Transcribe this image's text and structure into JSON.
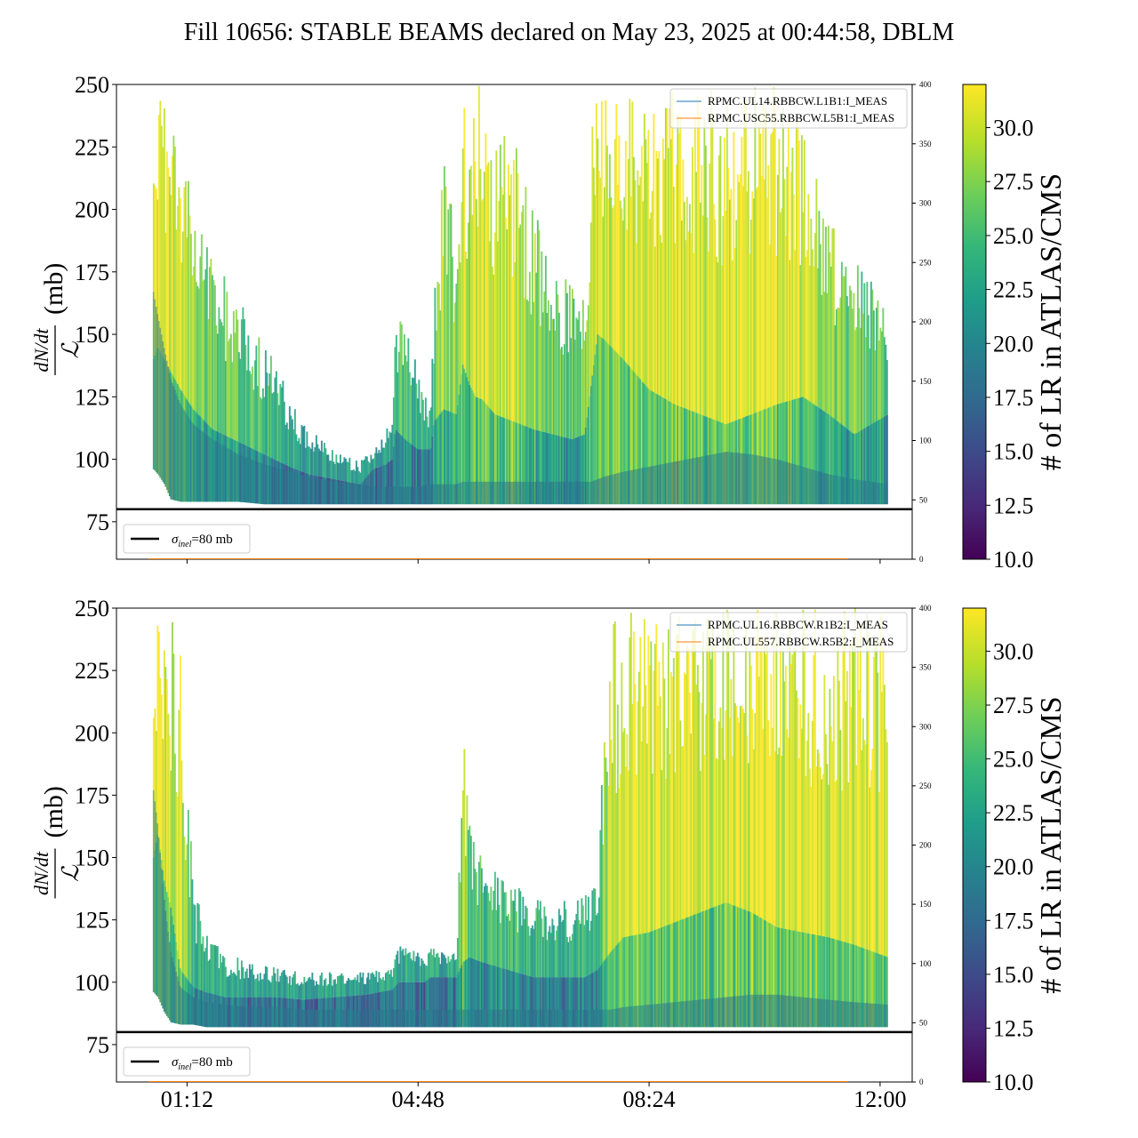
{
  "title": "Fill 10656: STABLE BEAMS declared on May 23, 2025 at 00:44:58, DBLM",
  "colors": {
    "viridis": [
      "#440154",
      "#482878",
      "#3e4989",
      "#31688e",
      "#26828e",
      "#1f9e89",
      "#35b779",
      "#6ece58",
      "#b5de2b",
      "#fde725"
    ],
    "sigma_line": "#000000",
    "rpmc_b1": "#1f77b4",
    "rpmc_b2": "#ff7f0e"
  },
  "chart_data": [
    {
      "type": "area",
      "panel": "top",
      "ylabel_num": "dN/dt",
      "ylabel_den": "ℒ",
      "ylabel_unit": "(mb)",
      "ylim": [
        60,
        250
      ],
      "yticks": [
        75,
        100,
        125,
        150,
        175,
        200,
        225,
        250
      ],
      "y2lim": [
        0,
        400
      ],
      "y2ticks": [
        0,
        50,
        100,
        150,
        200,
        250,
        300,
        350,
        400
      ],
      "xlim_hours": [
        0.1,
        12.5
      ],
      "xticks_hours": [
        1.2,
        4.8,
        8.4,
        12.0
      ],
      "xtick_labels": [
        "01:12",
        "04:48",
        "08:24",
        "12:00"
      ],
      "show_xtick_labels": false,
      "sigma_inel_mb": 80,
      "sigma_legend_sym": "σ",
      "sigma_legend_sub": "inel",
      "sigma_legend_val": "=80 mb",
      "right_legend": [
        "RPMC.UL14.RBBCW.L1B1:I_MEAS",
        "RPMC.USC55.RBBCW.L5B1:I_MEAS"
      ],
      "data_start_hours": 0.68,
      "data_end_hours": 12.13,
      "envelope": {
        "x_hours": [
          0.68,
          0.75,
          0.85,
          0.95,
          1.1,
          1.3,
          1.6,
          2.0,
          2.4,
          2.8,
          3.1,
          3.5,
          3.9,
          4.1,
          4.3,
          4.4,
          4.45,
          4.6,
          4.8,
          5.0,
          5.05,
          5.2,
          5.4,
          5.5,
          5.6,
          5.7,
          5.8,
          6.0,
          6.3,
          6.6,
          6.9,
          7.2,
          7.4,
          7.5,
          7.6,
          7.7,
          8.0,
          8.4,
          8.8,
          9.2,
          9.6,
          10.0,
          10.4,
          10.8,
          11.2,
          11.6,
          12.13
        ],
        "upper": [
          250,
          250,
          250,
          250,
          232,
          205,
          182,
          166,
          148,
          126,
          112,
          104,
          100,
          104,
          112,
          114,
          158,
          154,
          136,
          120,
          170,
          220,
          190,
          250,
          220,
          250,
          250,
          230,
          240,
          205,
          180,
          170,
          175,
          238,
          250,
          250,
          250,
          250,
          250,
          250,
          250,
          250,
          250,
          240,
          200,
          182,
          160
        ],
        "core_upper": [
          140,
          145,
          140,
          135,
          128,
          120,
          112,
          107,
          102,
          97,
          94,
          92,
          90,
          96,
          98,
          100,
          112,
          108,
          104,
          104,
          115,
          120,
          118,
          138,
          130,
          125,
          124,
          118,
          115,
          112,
          110,
          108,
          110,
          130,
          150,
          148,
          140,
          128,
          122,
          118,
          114,
          118,
          122,
          125,
          118,
          110,
          118
        ],
        "lower": [
          96,
          94,
          90,
          84,
          83,
          83,
          83,
          83,
          82,
          82,
          82,
          82,
          82,
          82,
          82,
          82,
          82,
          82,
          82,
          82,
          82,
          82,
          82,
          82,
          82,
          82,
          82,
          82,
          82,
          82,
          82,
          82,
          82,
          82,
          82,
          82,
          82,
          82,
          82,
          82,
          82,
          82,
          82,
          82,
          82,
          82,
          82
        ],
        "trace": [
          165,
          155,
          142,
          130,
          120,
          112,
          106,
          100,
          96,
          93,
          91,
          89,
          88,
          87,
          87,
          87,
          87,
          87,
          87,
          88,
          88,
          88,
          88,
          89,
          89,
          89,
          89,
          89,
          89,
          89,
          89,
          89,
          89,
          89,
          90,
          91,
          93,
          95,
          97,
          99,
          101,
          100,
          98,
          95,
          92,
          90,
          88
        ]
      }
    },
    {
      "type": "area",
      "panel": "bottom",
      "ylabel_num": "dN/dt",
      "ylabel_den": "ℒ",
      "ylabel_unit": "(mb)",
      "ylim": [
        60,
        250
      ],
      "yticks": [
        75,
        100,
        125,
        150,
        175,
        200,
        225,
        250
      ],
      "y2lim": [
        0,
        400
      ],
      "y2ticks": [
        0,
        50,
        100,
        150,
        200,
        250,
        300,
        350,
        400
      ],
      "xlim_hours": [
        0.1,
        12.5
      ],
      "xticks_hours": [
        1.2,
        4.8,
        8.4,
        12.0
      ],
      "xtick_labels": [
        "01:12",
        "04:48",
        "08:24",
        "12:00"
      ],
      "show_xtick_labels": true,
      "sigma_inel_mb": 80,
      "sigma_legend_sym": "σ",
      "sigma_legend_sub": "inel",
      "sigma_legend_val": "=80 mb",
      "right_legend": [
        "RPMC.UL16.RBBCW.R1B2:I_MEAS",
        "RPMC.UL557.RBBCW.R5B2:I_MEAS"
      ],
      "data_start_hours": 0.68,
      "data_end_hours": 12.13,
      "envelope": {
        "x_hours": [
          0.68,
          0.75,
          0.85,
          0.95,
          1.1,
          1.3,
          1.5,
          1.8,
          2.2,
          2.6,
          3.0,
          3.5,
          4.0,
          4.4,
          4.5,
          4.7,
          4.9,
          5.0,
          5.2,
          5.4,
          5.5,
          5.6,
          5.8,
          6.2,
          6.6,
          7.0,
          7.4,
          7.6,
          7.8,
          8.0,
          8.4,
          8.8,
          9.2,
          9.6,
          10.0,
          10.4,
          10.8,
          11.2,
          11.6,
          12.13
        ],
        "upper": [
          250,
          250,
          250,
          250,
          240,
          140,
          120,
          112,
          108,
          106,
          104,
          104,
          104,
          106,
          116,
          116,
          112,
          114,
          112,
          112,
          210,
          165,
          150,
          140,
          135,
          132,
          135,
          150,
          250,
          250,
          250,
          250,
          250,
          250,
          250,
          250,
          250,
          250,
          250,
          250
        ],
        "core_upper": [
          150,
          160,
          140,
          130,
          105,
          98,
          96,
          94,
          94,
          94,
          93,
          94,
          95,
          97,
          100,
          100,
          100,
          102,
          102,
          102,
          108,
          110,
          108,
          105,
          102,
          102,
          102,
          105,
          112,
          118,
          120,
          124,
          128,
          132,
          128,
          122,
          120,
          118,
          115,
          110
        ],
        "lower": [
          96,
          94,
          88,
          84,
          83,
          83,
          82,
          82,
          82,
          82,
          82,
          82,
          82,
          82,
          82,
          82,
          82,
          82,
          82,
          82,
          82,
          82,
          82,
          82,
          82,
          82,
          82,
          82,
          82,
          82,
          82,
          82,
          82,
          82,
          82,
          82,
          82,
          82,
          82,
          82
        ],
        "trace": [
          175,
          160,
          130,
          110,
          96,
          92,
          90,
          89,
          88,
          88,
          87,
          87,
          87,
          87,
          87,
          87,
          87,
          87,
          87,
          87,
          87,
          87,
          87,
          87,
          87,
          87,
          87,
          87,
          87,
          88,
          89,
          90,
          91,
          92,
          93,
          93,
          92,
          91,
          90,
          89
        ]
      }
    }
  ],
  "colorbar": {
    "label": "# of LR in ATLAS/CMS",
    "range": [
      10.0,
      32.0
    ],
    "ticks": [
      "10.0",
      "12.5",
      "15.0",
      "17.5",
      "20.0",
      "22.5",
      "25.0",
      "27.5",
      "30.0"
    ],
    "tick_values": [
      10.0,
      12.5,
      15.0,
      17.5,
      20.0,
      22.5,
      25.0,
      27.5,
      30.0
    ]
  }
}
